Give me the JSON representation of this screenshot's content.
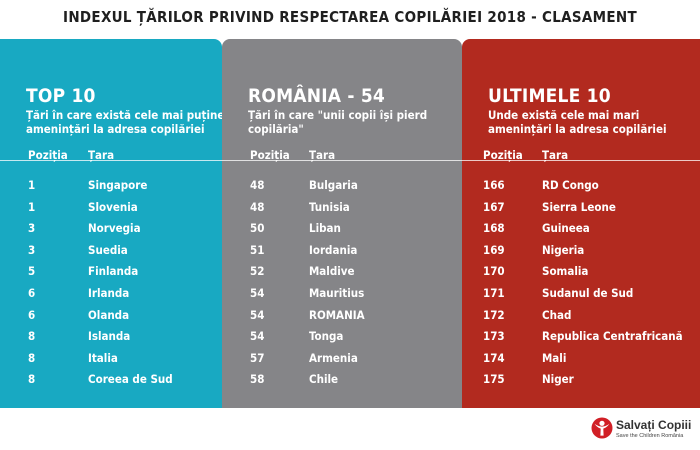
{
  "title": "INDEXUL ȚĂRILOR PRIVIND RESPECTAREA COPILĂRIEI 2018 - CLASAMENT",
  "colors": {
    "left": "#18a9c2",
    "middle": "#858588",
    "right": "#b22a1f",
    "logo": "#d11f26"
  },
  "panels": [
    {
      "title": "TOP 10",
      "description": "Țări în care există cele mai puține amenințări la adresa copilăriei",
      "col_rank": "Poziția",
      "col_country": "Țara",
      "rows": [
        {
          "rank": "1",
          "country": "Singapore"
        },
        {
          "rank": "1",
          "country": "Slovenia"
        },
        {
          "rank": "3",
          "country": "Norvegia"
        },
        {
          "rank": "3",
          "country": "Suedia"
        },
        {
          "rank": "5",
          "country": "Finlanda"
        },
        {
          "rank": "6",
          "country": "Irlanda"
        },
        {
          "rank": "6",
          "country": "Olanda"
        },
        {
          "rank": "8",
          "country": "Islanda"
        },
        {
          "rank": "8",
          "country": "Italia"
        },
        {
          "rank": "8",
          "country": "Coreea de Sud"
        }
      ]
    },
    {
      "title": "ROMÂNIA - 54",
      "description": "Țări în care \"unii copii își pierd copilăria\"",
      "col_rank": "Poziția",
      "col_country": "Țara",
      "rows": [
        {
          "rank": "48",
          "country": "Bulgaria"
        },
        {
          "rank": "48",
          "country": "Tunisia"
        },
        {
          "rank": "50",
          "country": "Liban"
        },
        {
          "rank": "51",
          "country": "Iordania"
        },
        {
          "rank": "52",
          "country": "Maldive"
        },
        {
          "rank": "54",
          "country": "Mauritius"
        },
        {
          "rank": "54",
          "country": "ROMANIA"
        },
        {
          "rank": "54",
          "country": "Tonga"
        },
        {
          "rank": "57",
          "country": "Armenia"
        },
        {
          "rank": "58",
          "country": "Chile"
        }
      ]
    },
    {
      "title": "ULTIMELE 10",
      "description": "Unde există cele mai mari amenințări la adresa copilăriei",
      "col_rank": "Poziția",
      "col_country": "Țara",
      "rows": [
        {
          "rank": "166",
          "country": "RD Congo"
        },
        {
          "rank": "167",
          "country": "Sierra Leone"
        },
        {
          "rank": "168",
          "country": "Guineea"
        },
        {
          "rank": "169",
          "country": "Nigeria"
        },
        {
          "rank": "170",
          "country": "Somalia"
        },
        {
          "rank": "171",
          "country": "Sudanul de Sud"
        },
        {
          "rank": "172",
          "country": "Chad"
        },
        {
          "rank": "173",
          "country": "Republica Centrafricană"
        },
        {
          "rank": "174",
          "country": "Mali"
        },
        {
          "rank": "175",
          "country": "Niger"
        }
      ]
    }
  ],
  "logo": {
    "name": "Salvați Copiii",
    "subtitle": "Save the Children România",
    "icon": "save-the-children-logo-icon"
  }
}
